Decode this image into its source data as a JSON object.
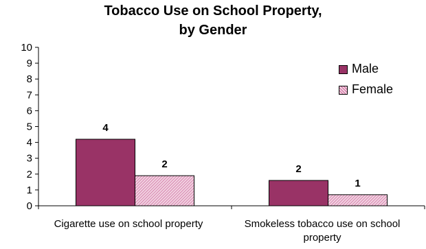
{
  "chart_data": {
    "type": "bar",
    "title_lines": [
      "Tobacco Use on School Property,",
      "by Gender"
    ],
    "categories": [
      "Cigarette use on school property",
      "Smokeless tobacco use on school property"
    ],
    "series": [
      {
        "name": "Male",
        "values": [
          4.2,
          1.6
        ],
        "data_labels": [
          "4",
          "2"
        ],
        "color": "#993366",
        "pattern": "solid"
      },
      {
        "name": "Female",
        "values": [
          1.9,
          0.7
        ],
        "data_labels": [
          "2",
          "1"
        ],
        "color": "#cc6699",
        "pattern": "hatched"
      }
    ],
    "y_ticks": [
      0,
      1,
      2,
      3,
      4,
      5,
      6,
      7,
      8,
      9,
      10
    ],
    "ylim": [
      0,
      10
    ],
    "grid": false,
    "legend_position": "top-right"
  }
}
